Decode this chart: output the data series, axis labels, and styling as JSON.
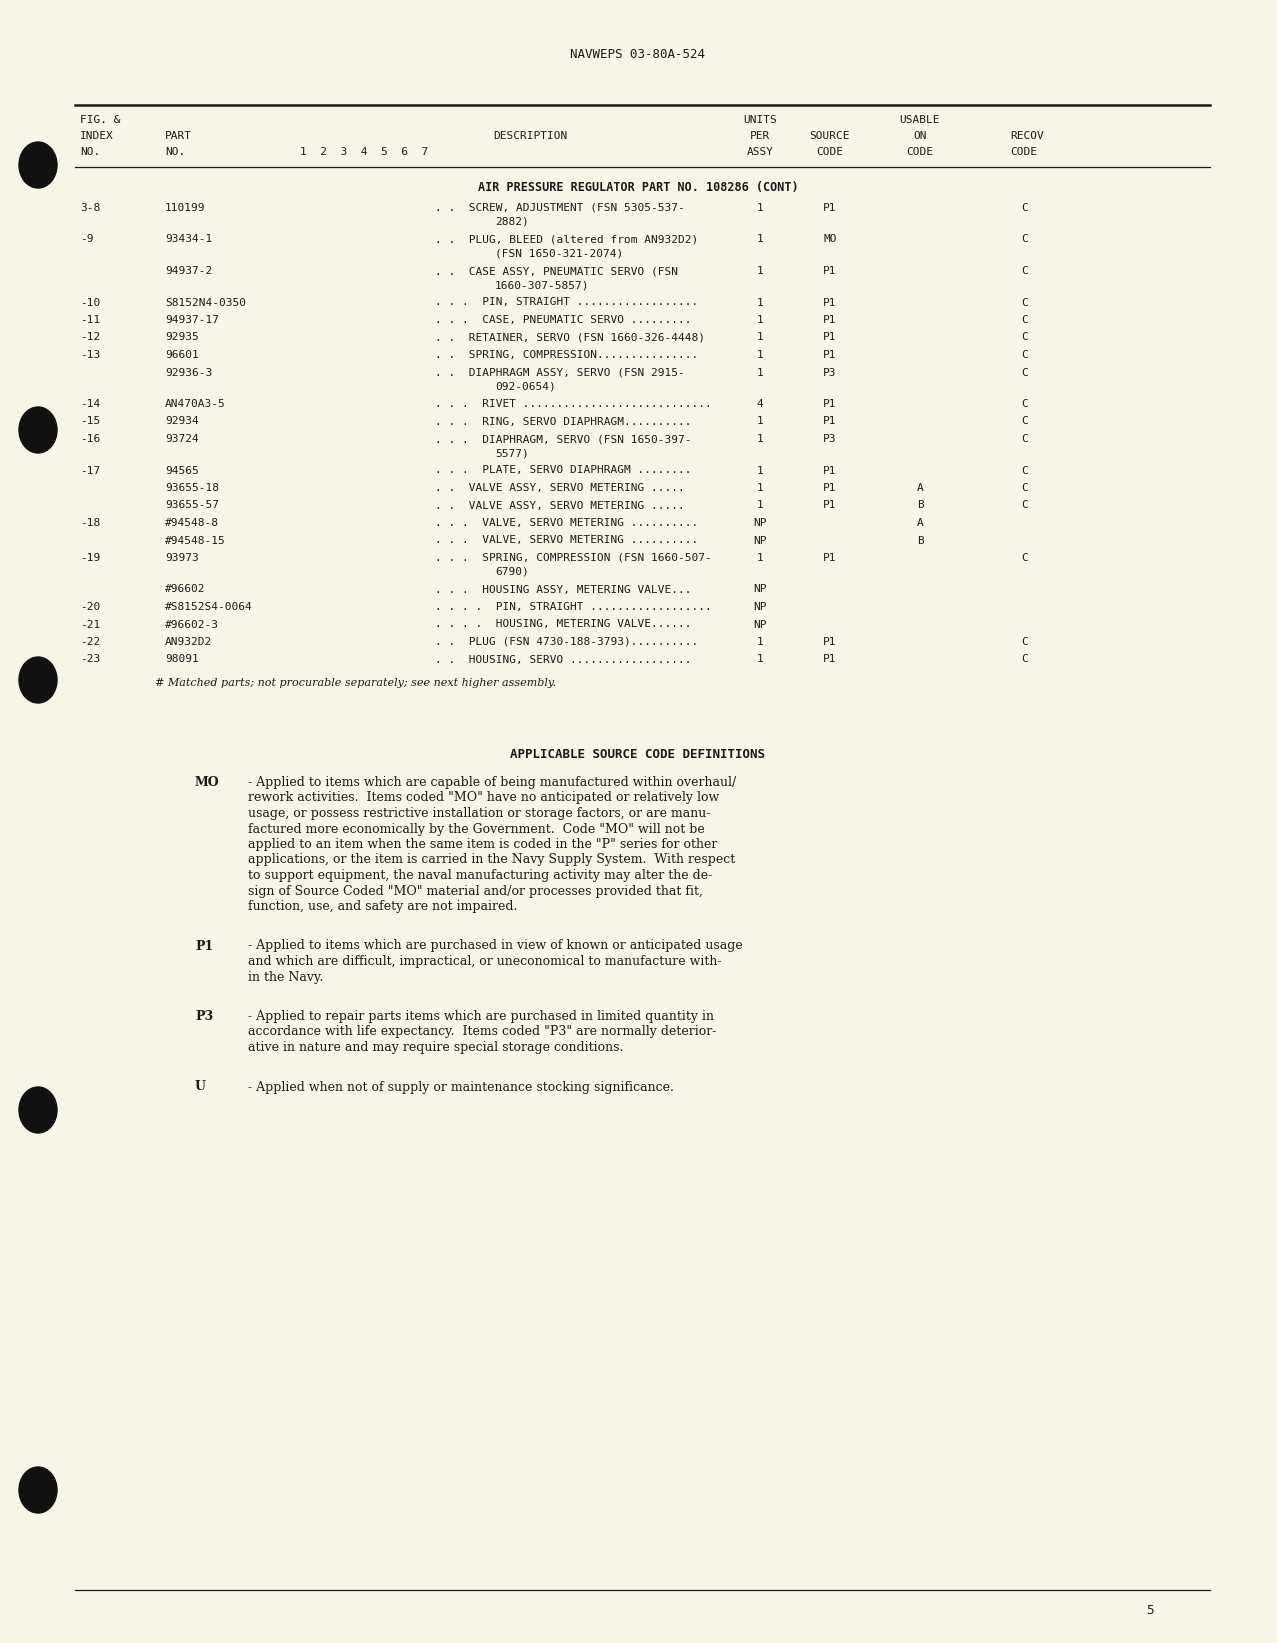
{
  "page_header": "NAVWEPS 03-80A-524",
  "bg_color": "#F7F4E8",
  "text_color": "#1a1a1a",
  "section_title": "AIR PRESSURE REGULATOR PART NO. 108286 (CONT)",
  "table_rows": [
    {
      "fig": "3-8",
      "part": "110199",
      "indent": 2,
      "desc": "SCREW, ADJUSTMENT (FSN 5305-537-",
      "desc2": "2882)",
      "qty": "1",
      "source": "P1",
      "usable": "",
      "recov": "C"
    },
    {
      "fig": "-9",
      "part": "93434-1",
      "indent": 2,
      "desc": "PLUG, BLEED (altered from AN932D2)",
      "desc2": "(FSN 1650-321-2074)",
      "qty": "1",
      "source": "MO",
      "usable": "",
      "recov": "C"
    },
    {
      "fig": "",
      "part": "94937-2",
      "indent": 2,
      "desc": "CASE ASSY, PNEUMATIC SERVO (FSN",
      "desc2": "1660-307-5857)",
      "qty": "1",
      "source": "P1",
      "usable": "",
      "recov": "C"
    },
    {
      "fig": "-10",
      "part": "S8152N4-0350",
      "indent": 3,
      "desc": "PIN, STRAIGHT ..................",
      "desc2": "",
      "qty": "1",
      "source": "P1",
      "usable": "",
      "recov": "C"
    },
    {
      "fig": "-11",
      "part": "94937-17",
      "indent": 3,
      "desc": "CASE, PNEUMATIC SERVO .........",
      "desc2": "",
      "qty": "1",
      "source": "P1",
      "usable": "",
      "recov": "C"
    },
    {
      "fig": "-12",
      "part": "92935",
      "indent": 2,
      "desc": "RETAINER, SERVO (FSN 1660-326-4448)",
      "desc2": "",
      "qty": "1",
      "source": "P1",
      "usable": "",
      "recov": "C"
    },
    {
      "fig": "-13",
      "part": "96601",
      "indent": 2,
      "desc": "SPRING, COMPRESSION...............",
      "desc2": "",
      "qty": "1",
      "source": "P1",
      "usable": "",
      "recov": "C"
    },
    {
      "fig": "",
      "part": "92936-3",
      "indent": 2,
      "desc": "DIAPHRAGM ASSY, SERVO (FSN 2915-",
      "desc2": "092-0654)",
      "qty": "1",
      "source": "P3",
      "usable": "",
      "recov": "C"
    },
    {
      "fig": "-14",
      "part": "AN470A3-5",
      "indent": 3,
      "desc": "RIVET ............................",
      "desc2": "",
      "qty": "4",
      "source": "P1",
      "usable": "",
      "recov": "C"
    },
    {
      "fig": "-15",
      "part": "92934",
      "indent": 3,
      "desc": "RING, SERVO DIAPHRAGM..........",
      "desc2": "",
      "qty": "1",
      "source": "P1",
      "usable": "",
      "recov": "C"
    },
    {
      "fig": "-16",
      "part": "93724",
      "indent": 3,
      "desc": "DIAPHRAGM, SERVO (FSN 1650-397-",
      "desc2": "5577)",
      "qty": "1",
      "source": "P3",
      "usable": "",
      "recov": "C"
    },
    {
      "fig": "-17",
      "part": "94565",
      "indent": 3,
      "desc": "PLATE, SERVO DIAPHRAGM ........",
      "desc2": "",
      "qty": "1",
      "source": "P1",
      "usable": "",
      "recov": "C"
    },
    {
      "fig": "",
      "part": "93655-18",
      "indent": 2,
      "desc": "VALVE ASSY, SERVO METERING .....",
      "desc2": "",
      "qty": "1",
      "source": "P1",
      "usable": "A",
      "recov": "C"
    },
    {
      "fig": "",
      "part": "93655-57",
      "indent": 2,
      "desc": "VALVE ASSY, SERVO METERING .....",
      "desc2": "",
      "qty": "1",
      "source": "P1",
      "usable": "B",
      "recov": "C"
    },
    {
      "fig": "-18",
      "part": "#94548-8",
      "indent": 3,
      "desc": "VALVE, SERVO METERING ..........",
      "desc2": "",
      "qty": "NP",
      "source": "",
      "usable": "A",
      "recov": ""
    },
    {
      "fig": "",
      "part": "#94548-15",
      "indent": 3,
      "desc": "VALVE, SERVO METERING ..........",
      "desc2": "",
      "qty": "NP",
      "source": "",
      "usable": "B",
      "recov": ""
    },
    {
      "fig": "-19",
      "part": "93973",
      "indent": 3,
      "desc": "SPRING, COMPRESSION (FSN 1660-507-",
      "desc2": "6790)",
      "qty": "1",
      "source": "P1",
      "usable": "",
      "recov": "C"
    },
    {
      "fig": "",
      "part": "#96602",
      "indent": 3,
      "desc": "HOUSING ASSY, METERING VALVE...",
      "desc2": "",
      "qty": "NP",
      "source": "",
      "usable": "",
      "recov": ""
    },
    {
      "fig": "-20",
      "part": "#S8152S4-0064",
      "indent": 4,
      "desc": "PIN, STRAIGHT ..................",
      "desc2": "",
      "qty": "NP",
      "source": "",
      "usable": "",
      "recov": ""
    },
    {
      "fig": "-21",
      "part": "#96602-3",
      "indent": 4,
      "desc": "HOUSING, METERING VALVE......",
      "desc2": "",
      "qty": "NP",
      "source": "",
      "usable": "",
      "recov": ""
    },
    {
      "fig": "-22",
      "part": "AN932D2",
      "indent": 2,
      "desc": "PLUG (FSN 4730-188-3793)..........",
      "desc2": "",
      "qty": "1",
      "source": "P1",
      "usable": "",
      "recov": "C"
    },
    {
      "fig": "-23",
      "part": "98091",
      "indent": 2,
      "desc": "HOUSING, SERVO ..................",
      "desc2": "",
      "qty": "1",
      "source": "P1",
      "usable": "",
      "recov": "C"
    }
  ],
  "footnote": "# Matched parts; not procurable separately; see next higher assembly.",
  "source_code_title": "APPLICABLE SOURCE CODE DEFINITIONS",
  "source_codes": [
    {
      "code": "MO",
      "lines": [
        "- Applied to items which are capable of being manufactured within overhaul/",
        "rework activities.  Items coded \"MO\" have no anticipated or relatively low",
        "usage, or possess restrictive installation or storage factors, or are manu-",
        "factured more economically by the Government.  Code \"MO\" will not be",
        "applied to an item when the same item is coded in the \"P\" series for other",
        "applications, or the item is carried in the Navy Supply System.  With respect",
        "to support equipment, the naval manufacturing activity may alter the de-",
        "sign of Source Coded \"MO\" material and/or processes provided that fit,",
        "function, use, and safety are not impaired."
      ]
    },
    {
      "code": "P1",
      "lines": [
        "- Applied to items which are purchased in view of known or anticipated usage",
        "and which are difficult, impractical, or uneconomical to manufacture with-",
        "in the Navy."
      ]
    },
    {
      "code": "P3",
      "lines": [
        "- Applied to repair parts items which are purchased in limited quantity in",
        "accordance with life expectancy.  Items coded \"P3\" are normally deterior-",
        "ative in nature and may require special storage conditions."
      ]
    },
    {
      "code": "U",
      "lines": [
        "- Applied when not of supply or maintenance stocking significance."
      ]
    }
  ],
  "page_number": "5"
}
